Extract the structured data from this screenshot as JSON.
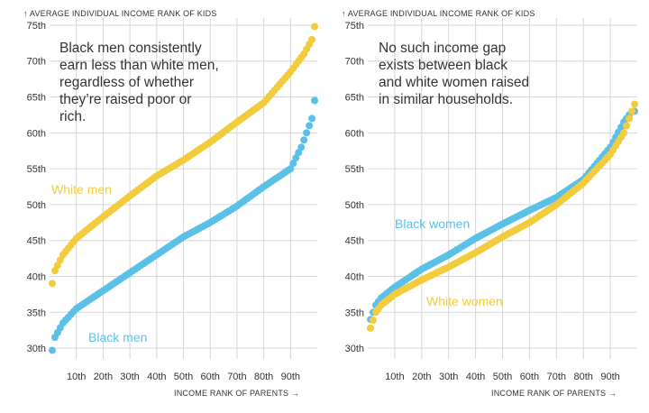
{
  "colors": {
    "white": "#F2CC3C",
    "black": "#5BC0E8",
    "grid": "#d6d6d6"
  },
  "chart_data": [
    {
      "type": "scatter",
      "title": "",
      "ylabel": "↑ AVERAGE INDIVIDUAL INCOME RANK OF KIDS",
      "xlabel": "INCOME RANK OF PARENTS →",
      "annotation": "Black men consistently earn less than white men, regardless of whether they’re raised poor or rich.",
      "xlim": [
        0,
        100
      ],
      "ylim": [
        28.5,
        76
      ],
      "yticks": [
        30,
        35,
        40,
        45,
        50,
        55,
        60,
        65,
        70,
        75
      ],
      "ytick_labels": [
        "30th",
        "35th",
        "40th",
        "45th",
        "50th",
        "55th",
        "60th",
        "65th",
        "70th",
        "75th"
      ],
      "xticks": [
        10,
        20,
        30,
        40,
        50,
        60,
        70,
        80,
        90
      ],
      "xtick_labels": [
        "10th",
        "20th",
        "30th",
        "40th",
        "50th",
        "60th",
        "70th",
        "80th",
        "90th"
      ],
      "series": [
        {
          "name": "White men",
          "color_key": "white",
          "anchors": [
            [
              1,
              39
            ],
            [
              2,
              40.8
            ],
            [
              5,
              43
            ],
            [
              10,
              45.3
            ],
            [
              20,
              48.3
            ],
            [
              30,
              51.2
            ],
            [
              40,
              54
            ],
            [
              50,
              56.2
            ],
            [
              60,
              58.7
            ],
            [
              70,
              61.5
            ],
            [
              80,
              64.2
            ],
            [
              90,
              68.5
            ],
            [
              95,
              71
            ],
            [
              98,
              73
            ],
            [
              99,
              74.8
            ]
          ]
        },
        {
          "name": "Black men",
          "color_key": "black",
          "anchors": [
            [
              1,
              29.7
            ],
            [
              2,
              31.5
            ],
            [
              5,
              33.5
            ],
            [
              10,
              35.5
            ],
            [
              20,
              38
            ],
            [
              30,
              40.5
            ],
            [
              40,
              43
            ],
            [
              50,
              45.5
            ],
            [
              60,
              47.5
            ],
            [
              70,
              49.8
            ],
            [
              80,
              52.5
            ],
            [
              90,
              55
            ],
            [
              94,
              58
            ],
            [
              97,
              61
            ],
            [
              98,
              62
            ],
            [
              99,
              64.5
            ]
          ]
        }
      ]
    },
    {
      "type": "scatter",
      "title": "",
      "ylabel": "↑ AVERAGE INDIVIDUAL INCOME RANK OF KIDS",
      "xlabel": "INCOME RANK OF PARENTS →",
      "annotation": "No such income gap exists between black and white women raised in similar households.",
      "xlim": [
        0,
        100
      ],
      "ylim": [
        28.5,
        76
      ],
      "yticks": [
        30,
        35,
        40,
        45,
        50,
        55,
        60,
        65,
        70,
        75
      ],
      "ytick_labels": [
        "30th",
        "35th",
        "40th",
        "45th",
        "50th",
        "55th",
        "60th",
        "65th",
        "70th",
        "75th"
      ],
      "xticks": [
        10,
        20,
        30,
        40,
        50,
        60,
        70,
        80,
        90
      ],
      "xtick_labels": [
        "10th",
        "20th",
        "30th",
        "40th",
        "50th",
        "60th",
        "70th",
        "80th",
        "90th"
      ],
      "series": [
        {
          "name": "Black women",
          "color_key": "black",
          "anchors": [
            [
              1,
              34
            ],
            [
              3,
              36
            ],
            [
              5,
              37
            ],
            [
              10,
              38.5
            ],
            [
              20,
              41
            ],
            [
              30,
              43
            ],
            [
              40,
              45.3
            ],
            [
              50,
              47.3
            ],
            [
              60,
              49.2
            ],
            [
              70,
              51
            ],
            [
              80,
              53.5
            ],
            [
              90,
              58
            ],
            [
              95,
              61.5
            ],
            [
              98,
              63
            ]
          ]
        },
        {
          "name": "White women",
          "color_key": "white",
          "anchors": [
            [
              1,
              32.8
            ],
            [
              3,
              35
            ],
            [
              5,
              36
            ],
            [
              10,
              37.5
            ],
            [
              20,
              39.5
            ],
            [
              30,
              41.3
            ],
            [
              40,
              43.3
            ],
            [
              50,
              45.5
            ],
            [
              60,
              47.5
            ],
            [
              70,
              50
            ],
            [
              80,
              53
            ],
            [
              90,
              57
            ],
            [
              95,
              60
            ],
            [
              99,
              64
            ]
          ]
        }
      ]
    }
  ]
}
